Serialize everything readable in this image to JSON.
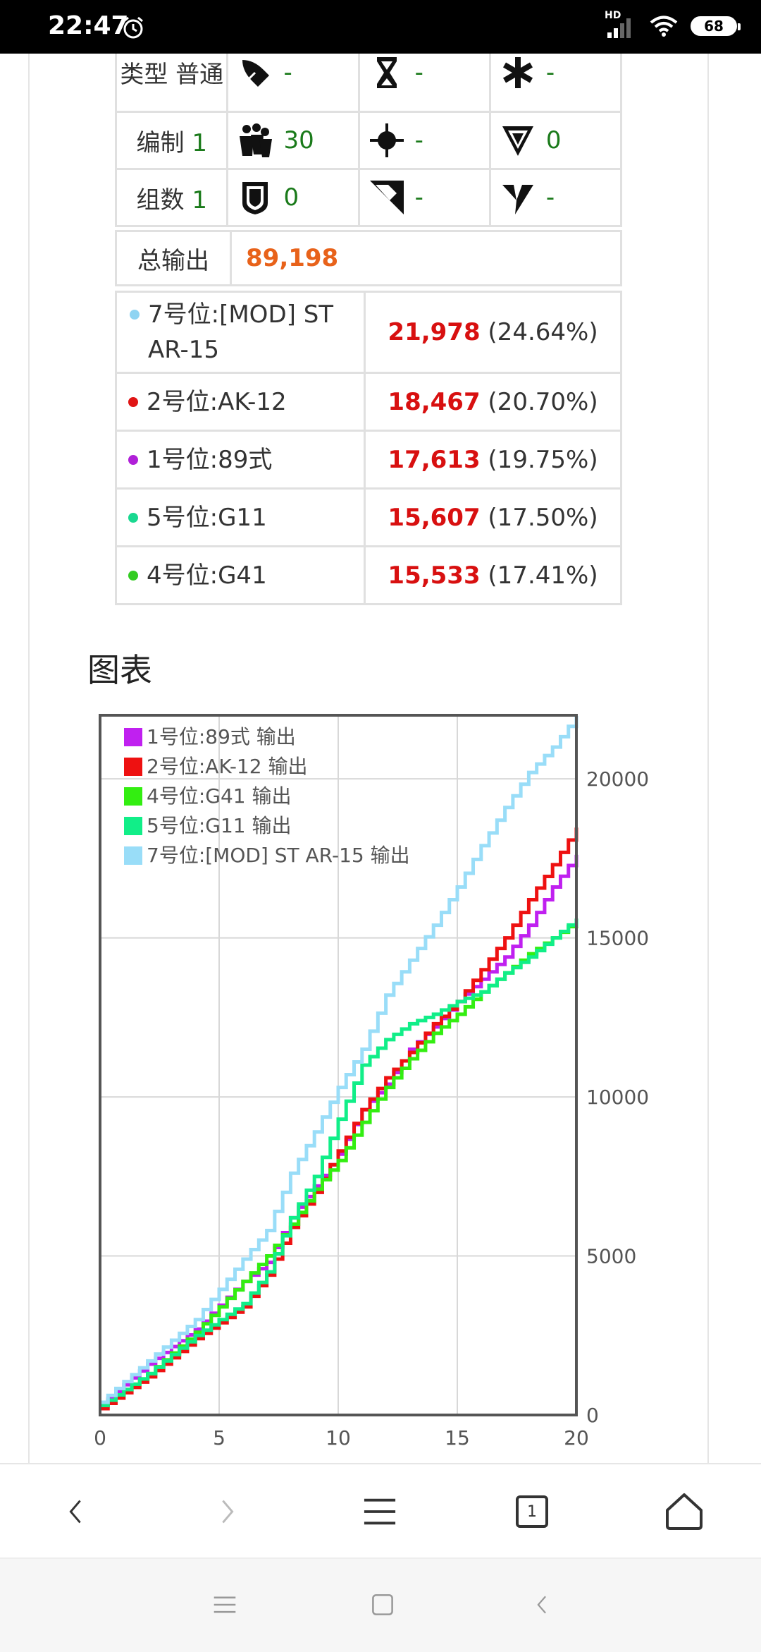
{
  "status": {
    "time": "22:47",
    "battery": "68",
    "hd": "HD"
  },
  "stats": {
    "rows": [
      {
        "label": "类型 普通",
        "value": "",
        "cells": [
          {
            "icon": "bullet-icon",
            "value": "-"
          },
          {
            "icon": "hourglass-icon",
            "value": "-"
          },
          {
            "icon": "asterisk-icon",
            "value": "-"
          }
        ]
      },
      {
        "label": "编制",
        "value": "1",
        "cells": [
          {
            "icon": "squad-icon",
            "value": "30"
          },
          {
            "icon": "crosshair-icon",
            "value": "-"
          },
          {
            "icon": "triangle-target-icon",
            "value": "0"
          }
        ]
      },
      {
        "label": "组数",
        "value": "1",
        "cells": [
          {
            "icon": "shield-icon",
            "value": "0"
          },
          {
            "icon": "armor-pierce-icon",
            "value": "-"
          },
          {
            "icon": "lightning-down-icon",
            "value": "-"
          }
        ]
      }
    ],
    "total_label": "总输出",
    "total_value": "89,198"
  },
  "damage": [
    {
      "unit": "7号位:[MOD] ST AR-15",
      "value": "21,978",
      "pct": "(24.64%)",
      "dot_color": "#8fd4f2"
    },
    {
      "unit": "2号位:AK-12",
      "value": "18,467",
      "pct": "(20.70%)",
      "dot_color": "#e01515"
    },
    {
      "unit": "1号位:89式",
      "value": "17,613",
      "pct": "(19.75%)",
      "dot_color": "#b020d8"
    },
    {
      "unit": "5号位:G11",
      "value": "15,607",
      "pct": "(17.50%)",
      "dot_color": "#19d890"
    },
    {
      "unit": "4号位:G41",
      "value": "15,533",
      "pct": "(17.41%)",
      "dot_color": "#33cc22"
    }
  ],
  "section_title": "图表",
  "chart_data": {
    "type": "line",
    "xlim": [
      0,
      20
    ],
    "ylim": [
      0,
      22000
    ],
    "x_ticks": [
      "0",
      "5",
      "10",
      "15",
      "20"
    ],
    "y_ticks": [
      "0",
      "5000",
      "10000",
      "15000",
      "20000"
    ],
    "grid": true,
    "legend_position": "top-left",
    "y_axis_side": "right",
    "series": [
      {
        "name": "1号位:89式 输出",
        "color": "#c020f0",
        "x": [
          0,
          2,
          4,
          6,
          7,
          8,
          9,
          10,
          11,
          12,
          13,
          14,
          15,
          16,
          17,
          18,
          19,
          20
        ],
        "y": [
          300,
          1600,
          2700,
          4200,
          4800,
          6200,
          7200,
          8200,
          9600,
          10400,
          11500,
          12200,
          13000,
          13700,
          14400,
          15400,
          16600,
          17613
        ]
      },
      {
        "name": "2号位:AK-12 输出",
        "color": "#ee1111",
        "x": [
          0,
          2,
          4,
          6,
          7,
          8,
          9,
          10,
          11,
          12,
          13,
          14,
          15,
          16,
          17,
          18,
          19,
          20
        ],
        "y": [
          200,
          1200,
          2400,
          3400,
          4400,
          5900,
          7000,
          8300,
          9600,
          10600,
          11400,
          12300,
          13000,
          14000,
          15000,
          16200,
          17300,
          18467
        ]
      },
      {
        "name": "4号位:G41 输出",
        "color": "#33ee11",
        "x": [
          0,
          2,
          4,
          6,
          7,
          8,
          9,
          10,
          11,
          12,
          13,
          14,
          15,
          16,
          17,
          18,
          19,
          20
        ],
        "y": [
          300,
          1300,
          2600,
          4200,
          5000,
          6000,
          7100,
          8000,
          9200,
          10300,
          11200,
          12000,
          12600,
          13300,
          13900,
          14500,
          15000,
          15533
        ]
      },
      {
        "name": "5号位:G11 输出",
        "color": "#11ee88",
        "x": [
          0,
          2,
          4,
          6,
          7,
          8,
          9,
          10,
          11,
          12,
          13,
          14,
          15,
          16,
          17,
          18,
          19,
          20
        ],
        "y": [
          300,
          1300,
          2500,
          3500,
          4500,
          6200,
          7500,
          9300,
          11000,
          11800,
          12300,
          12600,
          13000,
          13300,
          13900,
          14400,
          15000,
          15607
        ]
      },
      {
        "name": "7号位:[MOD] ST AR-15 输出",
        "color": "#99ddf8",
        "x": [
          0,
          2,
          4,
          6,
          7,
          8,
          9,
          10,
          11,
          12,
          13,
          14,
          15,
          16,
          17,
          18,
          19,
          20
        ],
        "y": [
          400,
          1700,
          3000,
          4900,
          5800,
          7600,
          8900,
          10300,
          11500,
          13200,
          14300,
          15400,
          16600,
          17900,
          19100,
          20200,
          21000,
          21978
        ]
      }
    ]
  },
  "browser_nav": {
    "tabs_count": "1"
  }
}
